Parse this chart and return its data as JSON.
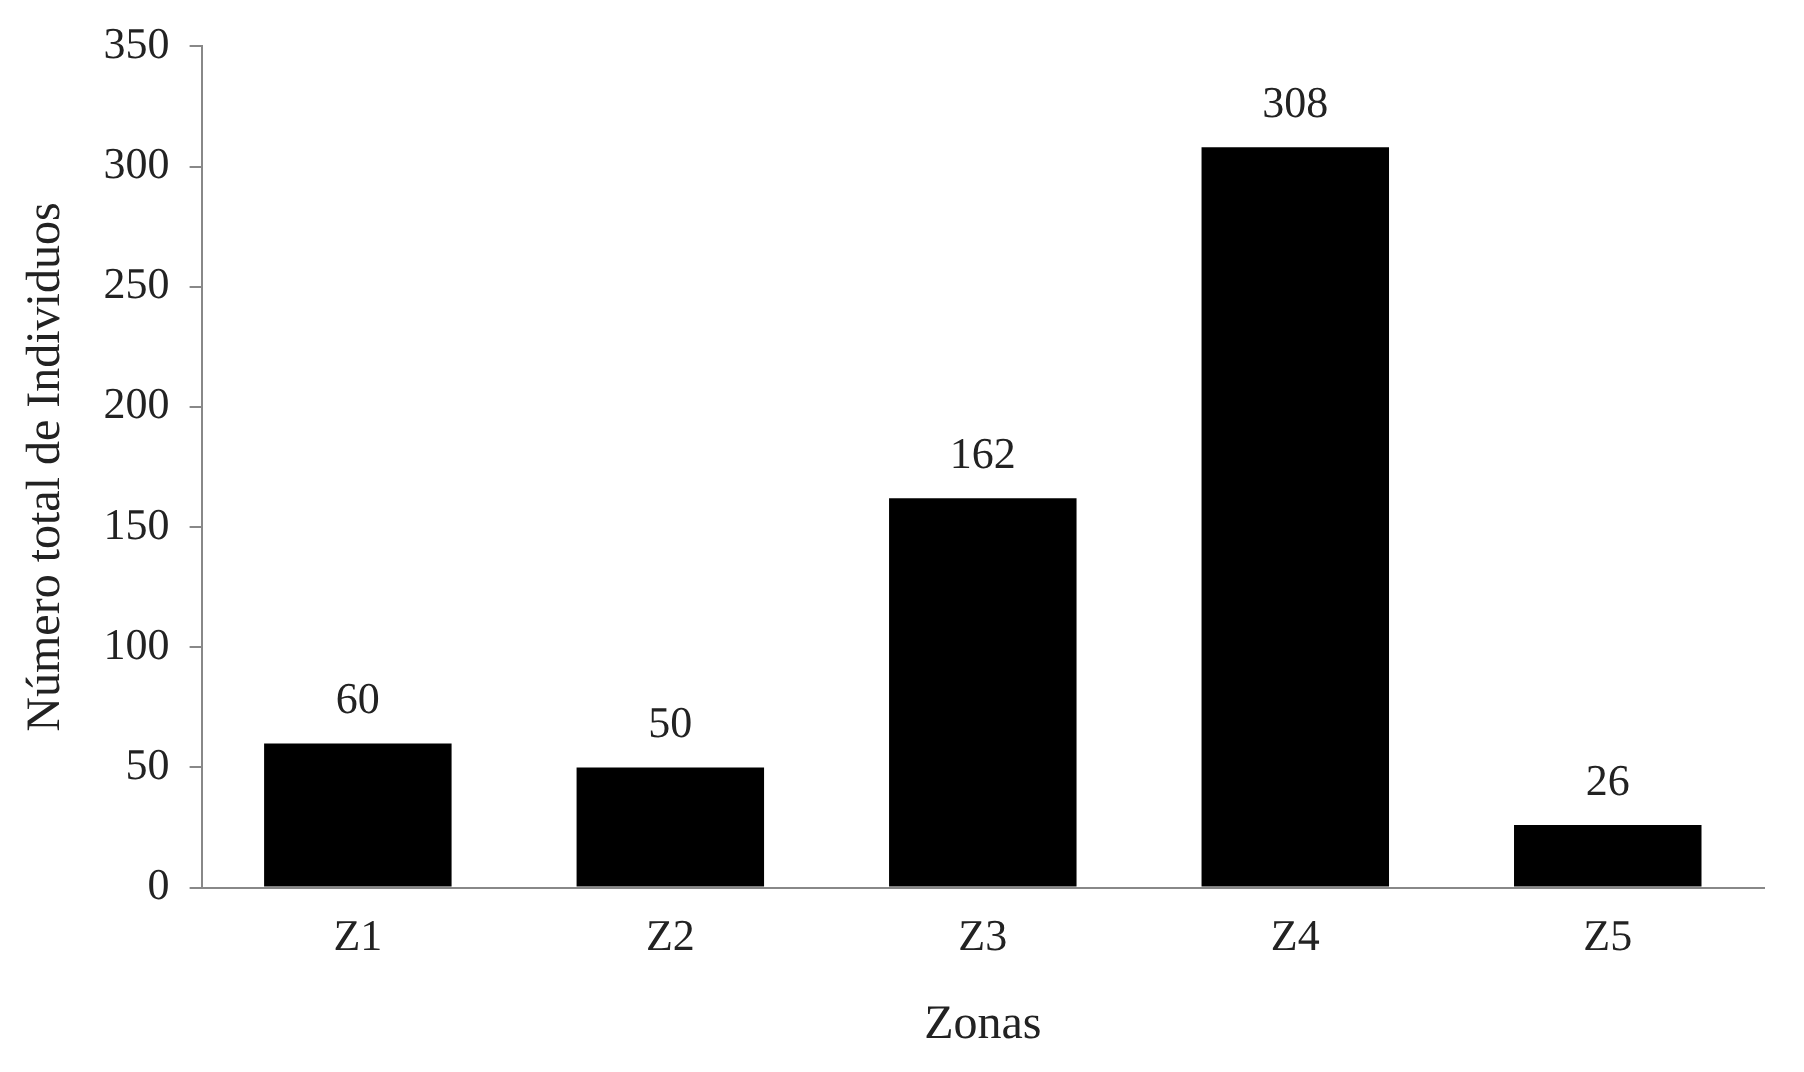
{
  "chart_data": {
    "type": "bar",
    "xlabel": "Zonas",
    "ylabel": "Número total de Individuos",
    "categories": [
      "Z1",
      "Z2",
      "Z3",
      "Z4",
      "Z5"
    ],
    "values": [
      60,
      50,
      162,
      308,
      26
    ],
    "color": "#000000",
    "ylim": [
      0,
      350
    ],
    "yticks": [
      0,
      50,
      100,
      150,
      200,
      250,
      300,
      350
    ],
    "grid": false,
    "legend": false,
    "data_labels": true
  }
}
